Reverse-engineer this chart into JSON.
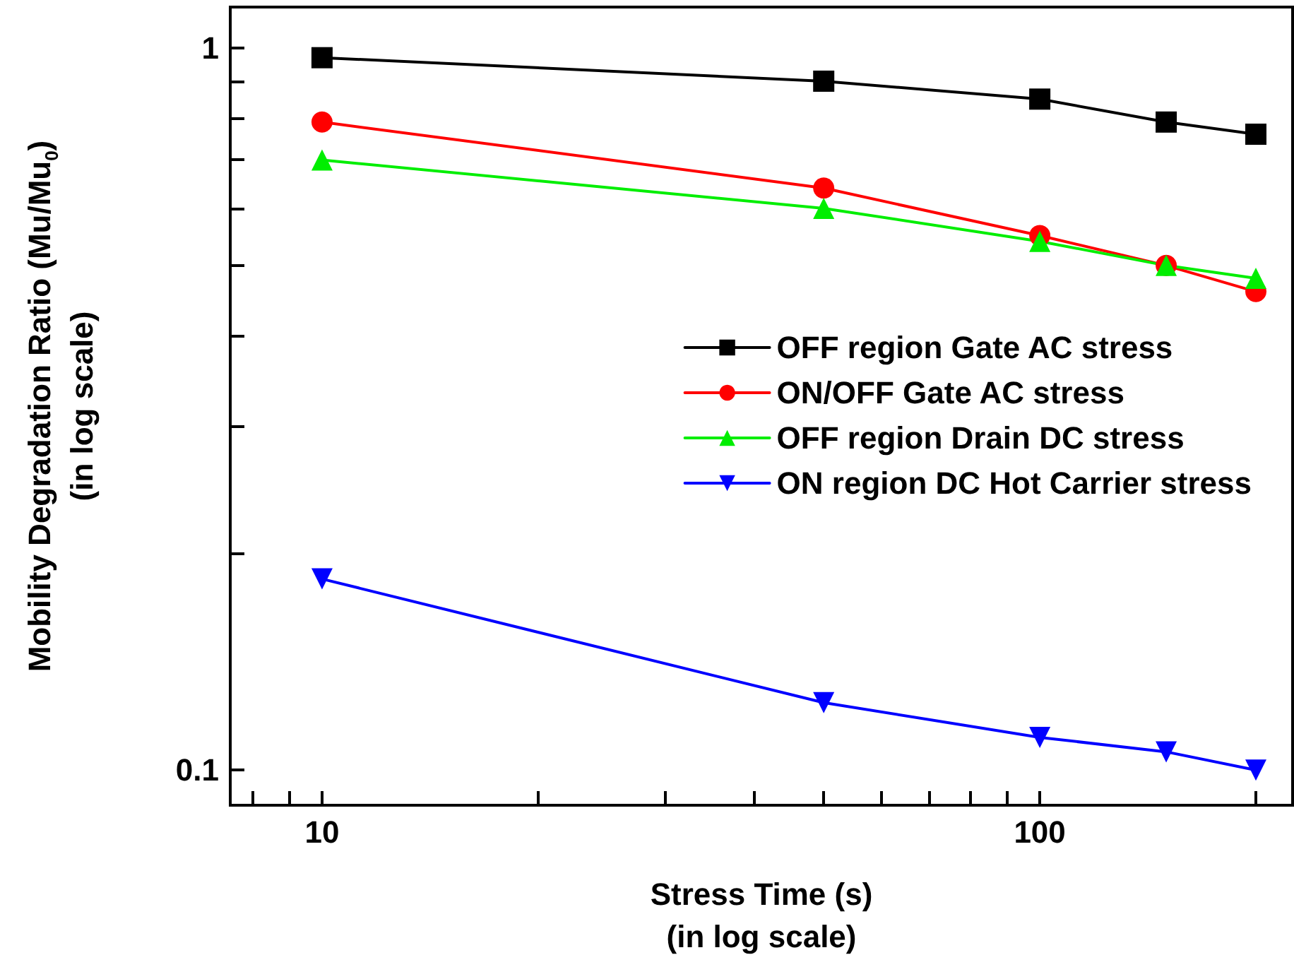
{
  "chart_data": {
    "type": "line",
    "xlabel": "Stress Time (s)\n(in log scale)",
    "ylabel": "Mobility Degradation Ratio (Mu/Mu$_{0}$)\n(in log scale)",
    "x": [
      10,
      50,
      100,
      150,
      200
    ],
    "series": [
      {
        "name": "OFF region Gate AC stress",
        "color": "#000000",
        "marker": "square",
        "values": [
          0.97,
          0.9,
          0.85,
          0.79,
          0.76
        ]
      },
      {
        "name": "ON/OFF Gate AC stress",
        "color": "#ff0000",
        "marker": "circle",
        "values": [
          0.79,
          0.64,
          0.55,
          0.5,
          0.46
        ]
      },
      {
        "name": "OFF region Drain DC stress",
        "color": "#00ee00",
        "marker": "triangle",
        "values": [
          0.7,
          0.6,
          0.54,
          0.5,
          0.48
        ]
      },
      {
        "name": "ON region DC Hot Carrier stress",
        "color": "#0000ff",
        "marker": "triangle-down",
        "values": [
          0.184,
          0.124,
          0.111,
          0.106,
          0.1
        ]
      }
    ],
    "log": "xy",
    "xlim": [
      7.45,
      225
    ],
    "ylim": [
      0.0894,
      1.14
    ],
    "xticks": [
      {
        "value": 8,
        "label": null
      },
      {
        "value": 9,
        "label": null
      },
      10,
      {
        "value": 20,
        "label": null
      },
      {
        "value": 30,
        "label": null
      },
      {
        "value": 40,
        "label": null
      },
      {
        "value": 50,
        "label": null
      },
      {
        "value": 60,
        "label": null
      },
      {
        "value": 70,
        "label": null
      },
      {
        "value": 80,
        "label": null
      },
      {
        "value": 90,
        "label": null
      },
      100,
      {
        "value": 200,
        "label": null
      }
    ],
    "yticks": [
      {
        "value": 0.1,
        "label": "0.1"
      },
      {
        "value": 0.2,
        "label": null
      },
      {
        "value": 0.3,
        "label": null
      },
      {
        "value": 0.4,
        "label": null
      },
      {
        "value": 0.5,
        "label": null
      },
      {
        "value": 0.6,
        "label": null
      },
      {
        "value": 0.7,
        "label": null
      },
      {
        "value": 0.8,
        "label": null
      },
      {
        "value": 0.9,
        "label": null
      },
      1
    ],
    "grid": false,
    "legend": "right",
    "line_style": "solid"
  }
}
